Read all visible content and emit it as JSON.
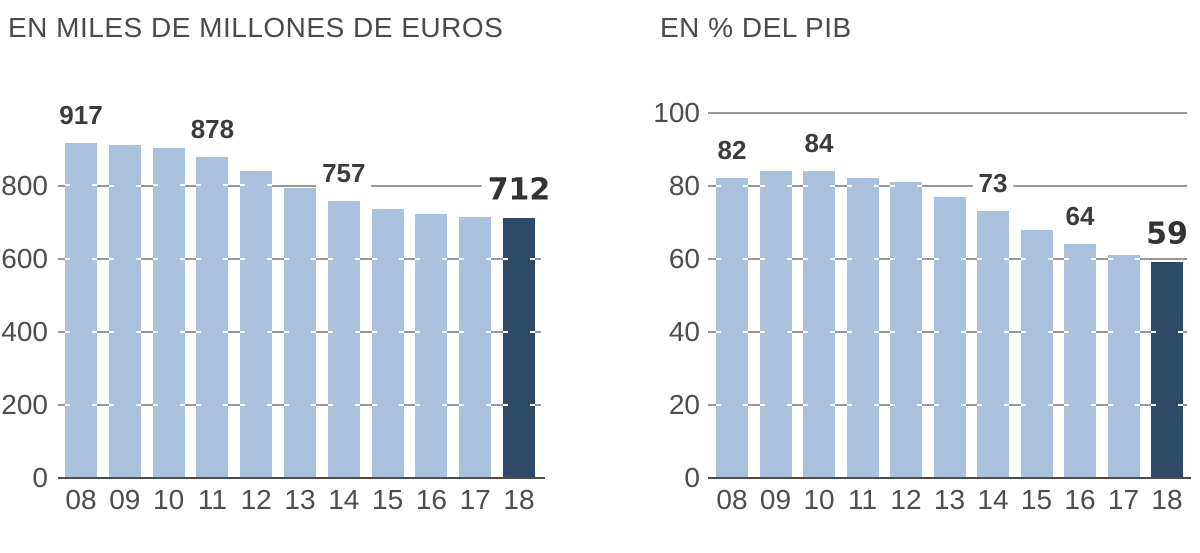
{
  "page": {
    "background": "#ffffff"
  },
  "style": {
    "bar_color": "#a9c1dd",
    "highlight_color": "#2e4a66",
    "grid_color": "#979797",
    "baseline_color": "#4d4d4d",
    "axis_text_color": "#4d4d4d",
    "value_text_color": "#3b3b3b",
    "title_color": "#4a4a4a"
  },
  "chart_data": [
    {
      "type": "bar",
      "title": "EN MILES DE MILLONES DE EUROS",
      "xlabel": "",
      "ylabel": "",
      "categories": [
        "08",
        "09",
        "10",
        "11",
        "12",
        "13",
        "14",
        "15",
        "16",
        "17",
        "18"
      ],
      "values": [
        917,
        910,
        903,
        878,
        841,
        793,
        757,
        735,
        722,
        714,
        712
      ],
      "labeled_points": [
        {
          "index": 0,
          "text": "917",
          "emphasis": false
        },
        {
          "index": 3,
          "text": "878",
          "emphasis": false
        },
        {
          "index": 6,
          "text": "757",
          "emphasis": false
        },
        {
          "index": 10,
          "text": "712",
          "emphasis": true
        }
      ],
      "yticks": [
        0,
        200,
        400,
        600,
        800
      ],
      "ylim": [
        0,
        1000
      ],
      "grid": true,
      "legend": "none",
      "highlight_index": 10,
      "bar_color": "#a9c1dd",
      "highlight_color": "#2e4a66"
    },
    {
      "type": "bar",
      "title": "EN % DEL PIB",
      "xlabel": "",
      "ylabel": "",
      "categories": [
        "08",
        "09",
        "10",
        "11",
        "12",
        "13",
        "14",
        "15",
        "16",
        "17",
        "18"
      ],
      "values": [
        82,
        84,
        84,
        82,
        81,
        77,
        73,
        68,
        64,
        61,
        59
      ],
      "labeled_points": [
        {
          "index": 0,
          "text": "82",
          "emphasis": false
        },
        {
          "index": 2,
          "text": "84",
          "emphasis": false
        },
        {
          "index": 6,
          "text": "73",
          "emphasis": false
        },
        {
          "index": 8,
          "text": "64",
          "emphasis": false
        },
        {
          "index": 10,
          "text": "59",
          "emphasis": true
        }
      ],
      "yticks": [
        0,
        20,
        40,
        60,
        80,
        100
      ],
      "ylim": [
        0,
        100
      ],
      "grid": true,
      "legend": "none",
      "highlight_index": 10,
      "bar_color": "#a9c1dd",
      "highlight_color": "#2e4a66"
    }
  ]
}
